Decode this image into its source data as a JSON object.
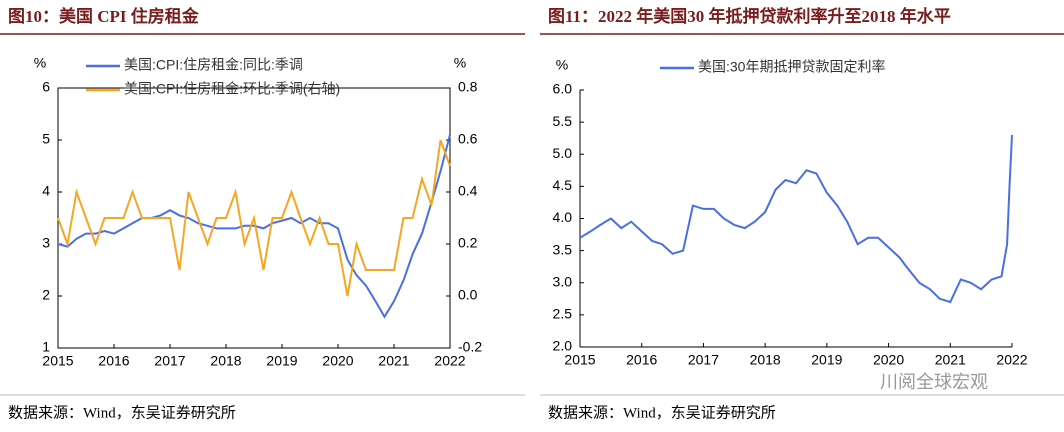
{
  "chart_data": [
    {
      "type": "line",
      "title": "图10：美国 CPI 住房租金",
      "y_label": "%",
      "y2_label": "%",
      "legend": "upper left",
      "xlim": [
        2015,
        2022
      ],
      "xticks": [
        2015,
        2016,
        2017,
        2018,
        2019,
        2020,
        2021,
        2022
      ],
      "ylim": [
        1,
        6
      ],
      "yticks": [
        1,
        2,
        3,
        4,
        5,
        6
      ],
      "y2lim": [
        -0.2,
        0.8
      ],
      "y2ticks": [
        -0.2,
        {
          "value": 0,
          "label": "0.0"
        },
        0.2,
        0.4,
        0.6,
        0.8
      ],
      "x": [
        2015,
        2015.17,
        2015.33,
        2015.5,
        2015.67,
        2015.83,
        2016,
        2016.17,
        2016.33,
        2016.5,
        2016.67,
        2016.83,
        2017,
        2017.17,
        2017.33,
        2017.5,
        2017.67,
        2017.83,
        2018,
        2018.17,
        2018.33,
        2018.5,
        2018.67,
        2018.83,
        2019,
        2019.17,
        2019.33,
        2019.5,
        2019.67,
        2019.83,
        2020,
        2020.17,
        2020.33,
        2020.5,
        2020.67,
        2020.83,
        2021,
        2021.17,
        2021.33,
        2021.5,
        2021.67,
        2021.83,
        2022
      ],
      "series": [
        {
          "name": "美国:CPI:住房租金:同比:季调",
          "color": "#4a6fe3",
          "values": [
            3.0,
            2.95,
            3.1,
            3.2,
            3.2,
            3.25,
            3.2,
            3.3,
            3.4,
            3.5,
            3.5,
            3.55,
            3.65,
            3.55,
            3.5,
            3.4,
            3.35,
            3.3,
            3.3,
            3.3,
            3.35,
            3.35,
            3.3,
            3.4,
            3.45,
            3.5,
            3.4,
            3.5,
            3.4,
            3.4,
            3.3,
            2.7,
            2.4,
            2.2,
            1.9,
            1.6,
            1.9,
            2.3,
            2.8,
            3.2,
            3.8,
            4.4,
            5.1
          ]
        },
        {
          "name": "美国:CPI:住房租金:环比:季调(右轴)",
          "color": "#f5a623",
          "axis": "y2",
          "values": [
            0.3,
            0.2,
            0.4,
            0.3,
            0.2,
            0.3,
            0.3,
            0.3,
            0.4,
            0.3,
            0.3,
            0.3,
            0.3,
            0.1,
            0.4,
            0.3,
            0.2,
            0.3,
            0.3,
            0.4,
            0.2,
            0.3,
            0.1,
            0.3,
            0.3,
            0.4,
            0.3,
            0.2,
            0.3,
            0.2,
            0.2,
            0.0,
            0.2,
            0.1,
            0.1,
            0.1,
            0.1,
            0.3,
            0.3,
            0.45,
            0.35,
            0.6,
            0.5
          ]
        }
      ],
      "source": "数据来源：Wind，东吴证券研究所"
    },
    {
      "type": "line",
      "title": "图11：2022 年美国30 年抵押贷款利率升至2018 年水平",
      "y_label": "%",
      "legend": "upper center",
      "xlim": [
        2015,
        2022
      ],
      "xticks": [
        2015,
        2016,
        2017,
        2018,
        2019,
        2020,
        2021,
        2022
      ],
      "ylim": [
        2,
        6
      ],
      "yticks": [
        {
          "value": 2,
          "label": "2.0"
        },
        2.5,
        {
          "value": 3,
          "label": "3.0"
        },
        3.5,
        {
          "value": 4,
          "label": "4.0"
        },
        4.5,
        {
          "value": 5,
          "label": "5.0"
        },
        5.5,
        {
          "value": 6,
          "label": "6.0"
        }
      ],
      "x": [
        2015,
        2015.17,
        2015.33,
        2015.5,
        2015.67,
        2015.83,
        2016,
        2016.17,
        2016.33,
        2016.5,
        2016.67,
        2016.83,
        2017,
        2017.17,
        2017.33,
        2017.5,
        2017.67,
        2017.83,
        2018,
        2018.17,
        2018.33,
        2018.5,
        2018.67,
        2018.83,
        2019,
        2019.17,
        2019.33,
        2019.5,
        2019.67,
        2019.83,
        2020,
        2020.17,
        2020.33,
        2020.5,
        2020.67,
        2020.83,
        2021,
        2021.17,
        2021.33,
        2021.5,
        2021.67,
        2021.83,
        2021.92,
        2021.96,
        2022
      ],
      "series": [
        {
          "name": "美国:30年期抵押贷款固定利率",
          "color": "#4a6fe3",
          "values": [
            3.7,
            3.8,
            3.9,
            4.0,
            3.85,
            3.95,
            3.8,
            3.65,
            3.6,
            3.45,
            3.5,
            4.2,
            4.15,
            4.15,
            4.0,
            3.9,
            3.85,
            3.95,
            4.1,
            4.45,
            4.6,
            4.55,
            4.75,
            4.7,
            4.4,
            4.2,
            3.95,
            3.6,
            3.7,
            3.7,
            3.55,
            3.4,
            3.2,
            3.0,
            2.9,
            2.75,
            2.7,
            3.05,
            3.0,
            2.9,
            3.05,
            3.1,
            3.6,
            4.5,
            5.3
          ]
        }
      ],
      "source": "数据来源：Wind，东吴证券研究所"
    }
  ],
  "watermark": "川阅全球宏观"
}
